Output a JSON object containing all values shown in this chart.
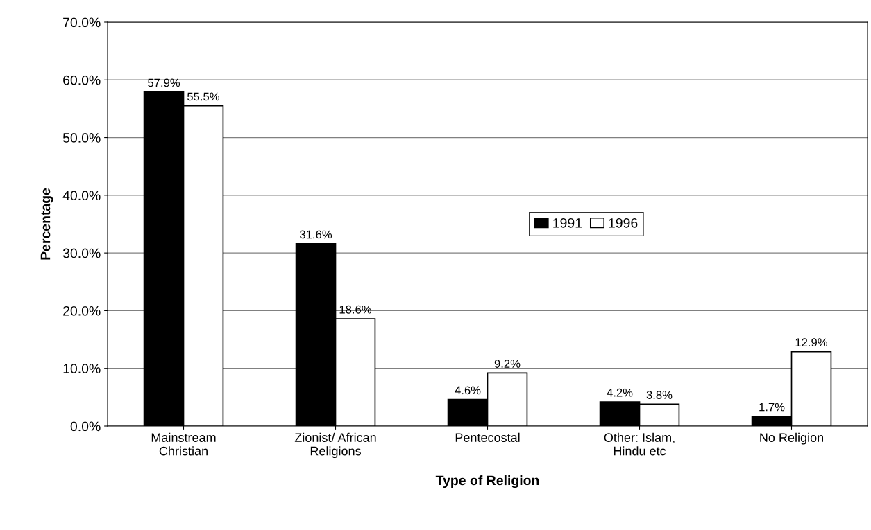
{
  "chart_data": {
    "type": "bar",
    "xlabel": "Type of Religion",
    "ylabel": "Percentage",
    "categories": [
      "Mainstream\nChristian",
      "Zionist/ African\nReligions",
      "Pentecostal",
      "Other: Islam,\nHindu etc",
      "No Religion"
    ],
    "series": [
      {
        "name": "1991",
        "color": "#000000",
        "values": [
          57.9,
          31.6,
          4.6,
          4.2,
          1.7
        ],
        "value_labels": [
          "57.9%",
          "31.6%",
          "4.6%",
          "4.2%",
          "1.7%"
        ]
      },
      {
        "name": "1996",
        "color": "#ffffff",
        "values": [
          55.5,
          18.6,
          9.2,
          3.8,
          12.9
        ],
        "value_labels": [
          "55.5%",
          "18.6%",
          "9.2%",
          "3.8%",
          "12.9%"
        ]
      }
    ],
    "ylim": [
      0,
      70
    ],
    "yticks": [
      {
        "value": 0,
        "label": "0.0%"
      },
      {
        "value": 10,
        "label": "10.0%"
      },
      {
        "value": 20,
        "label": "20.0%"
      },
      {
        "value": 30,
        "label": "30.0%"
      },
      {
        "value": 40,
        "label": "40.0%"
      },
      {
        "value": 50,
        "label": "50.0%"
      },
      {
        "value": 60,
        "label": "60.0%"
      },
      {
        "value": 70,
        "label": "70.0%"
      }
    ],
    "grid": "y",
    "legend": "center"
  }
}
